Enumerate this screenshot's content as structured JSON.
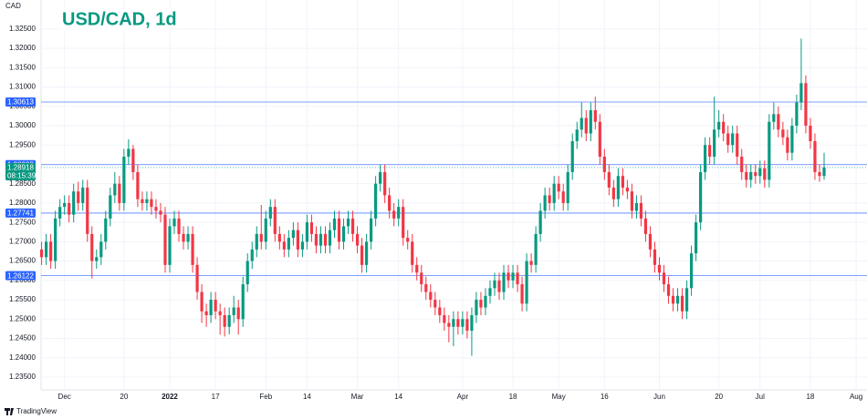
{
  "chart_data": {
    "type": "candlestick",
    "title": "USD/CAD, 1d",
    "y_label": "CAD",
    "footer": "TradingView",
    "up_color": "#089981",
    "down_color": "#f23645",
    "level_color": "#2962ff",
    "grid": true,
    "ylim": [
      1.2317,
      1.3325
    ],
    "yticks": [
      {
        "value": 1.235,
        "label": "1.23500"
      },
      {
        "value": 1.24,
        "label": "1.24000"
      },
      {
        "value": 1.245,
        "label": "1.24500"
      },
      {
        "value": 1.25,
        "label": "1.25000"
      },
      {
        "value": 1.255,
        "label": "1.25500"
      },
      {
        "value": 1.26,
        "label": "1.26000"
      },
      {
        "value": 1.265,
        "label": "1.26500"
      },
      {
        "value": 1.27,
        "label": "1.27000"
      },
      {
        "value": 1.275,
        "label": "1.27500"
      },
      {
        "value": 1.28,
        "label": "1.28000"
      },
      {
        "value": 1.285,
        "label": "1.28500"
      },
      {
        "value": 1.29,
        "label": "1.29000"
      },
      {
        "value": 1.295,
        "label": "1.29500"
      },
      {
        "value": 1.3,
        "label": "1.30000"
      },
      {
        "value": 1.305,
        "label": "1.30500"
      },
      {
        "value": 1.31,
        "label": "1.31000"
      },
      {
        "value": 1.315,
        "label": "1.31500"
      },
      {
        "value": 1.32,
        "label": "1.32000"
      },
      {
        "value": 1.325,
        "label": "1.32500"
      }
    ],
    "levels": [
      1.30613,
      1.28993,
      1.27741,
      1.26122
    ],
    "last_price": 1.28918,
    "countdown": "08:15:39",
    "categories": [
      null,
      null,
      null,
      null,
      null,
      "Dec",
      null,
      null,
      null,
      null,
      null,
      null,
      null,
      null,
      null,
      null,
      null,
      null,
      "20",
      null,
      null,
      null,
      null,
      null,
      null,
      null,
      null,
      null,
      "2022",
      null,
      null,
      null,
      null,
      null,
      null,
      null,
      null,
      null,
      "17",
      null,
      null,
      null,
      null,
      null,
      null,
      null,
      null,
      null,
      null,
      "Feb",
      null,
      null,
      null,
      null,
      null,
      null,
      null,
      null,
      "14",
      null,
      null,
      null,
      null,
      null,
      null,
      null,
      null,
      null,
      null,
      "Mar",
      null,
      null,
      null,
      null,
      null,
      null,
      null,
      null,
      "14",
      null,
      null,
      null,
      null,
      null,
      null,
      null,
      null,
      null,
      null,
      null,
      null,
      null,
      "Apr",
      null,
      null,
      null,
      null,
      null,
      null,
      null,
      null,
      null,
      null,
      "18",
      null,
      null,
      null,
      null,
      null,
      null,
      null,
      null,
      null,
      "May",
      null,
      null,
      null,
      null,
      null,
      null,
      null,
      null,
      null,
      "16",
      null,
      null,
      null,
      null,
      null,
      null,
      null,
      null,
      null,
      null,
      null,
      "Jun",
      null,
      null,
      null,
      null,
      null,
      null,
      null,
      null,
      null,
      null,
      null,
      null,
      "20",
      null,
      null,
      null,
      null,
      null,
      null,
      null,
      null,
      "Jul",
      null,
      null,
      null,
      null,
      null,
      null,
      null,
      null,
      null,
      null,
      "18",
      null,
      null,
      null,
      null,
      null,
      null,
      null,
      null,
      null,
      "Aug"
    ],
    "open": [
      1.268,
      1.266,
      1.27,
      1.265,
      1.276,
      1.279,
      1.28,
      1.277,
      1.283,
      1.28,
      1.284,
      1.272,
      1.265,
      1.266,
      1.27,
      1.276,
      1.282,
      1.285,
      1.28,
      1.292,
      1.294,
      1.288,
      1.281,
      1.28,
      1.281,
      1.279,
      1.278,
      1.277,
      1.264,
      1.274,
      1.276,
      1.272,
      1.27,
      1.272,
      1.264,
      1.257,
      1.252,
      1.251,
      1.255,
      1.252,
      1.251,
      1.248,
      1.251,
      1.253,
      1.25,
      1.259,
      1.265,
      1.268,
      1.272,
      1.27,
      1.276,
      1.279,
      1.272,
      1.27,
      1.268,
      1.271,
      1.273,
      1.268,
      1.27,
      1.275,
      1.272,
      1.269,
      1.272,
      1.269,
      1.273,
      1.276,
      1.27,
      1.274,
      1.276,
      1.272,
      1.269,
      1.264,
      1.27,
      1.276,
      1.285,
      1.288,
      1.282,
      1.278,
      1.276,
      1.279,
      1.271,
      1.27,
      1.264,
      1.262,
      1.259,
      1.257,
      1.255,
      1.253,
      1.251,
      1.249,
      1.248,
      1.25,
      1.248,
      1.25,
      1.247,
      1.251,
      1.255,
      1.253,
      1.256,
      1.258,
      1.26,
      1.257,
      1.262,
      1.26,
      1.262,
      1.259,
      1.254,
      1.265,
      1.264,
      1.272,
      1.278,
      1.282,
      1.28,
      1.285,
      1.283,
      1.28,
      1.288,
      1.296,
      1.299,
      1.302,
      1.298,
      1.304,
      1.301,
      1.292,
      1.288,
      1.284,
      1.281,
      1.287,
      1.284,
      1.283,
      1.278,
      1.28,
      1.276,
      1.272,
      1.268,
      1.264,
      1.262,
      1.259,
      1.256,
      1.254,
      1.256,
      1.252,
      1.258,
      1.267,
      1.275,
      1.288,
      1.295,
      1.292,
      1.299,
      1.301,
      1.298,
      1.295,
      1.298,
      1.292,
      1.288,
      1.286,
      1.288,
      1.287,
      1.289,
      1.286,
      1.301,
      1.303,
      1.299,
      1.297,
      1.293,
      1.3,
      1.306,
      1.311,
      1.3,
      1.296,
      1.288,
      1.287,
      null,
      null,
      null,
      null,
      null,
      null,
      null
    ],
    "high": [
      1.27,
      1.272,
      1.272,
      1.278,
      1.281,
      1.282,
      1.282,
      1.285,
      1.2855,
      1.286,
      1.286,
      1.274,
      1.268,
      1.272,
      1.278,
      1.284,
      1.288,
      1.287,
      1.294,
      1.2965,
      1.295,
      1.29,
      1.283,
      1.283,
      1.283,
      1.281,
      1.28,
      1.279,
      1.276,
      1.278,
      1.278,
      1.274,
      1.274,
      1.274,
      1.266,
      1.259,
      1.254,
      1.257,
      1.257,
      1.254,
      1.253,
      1.253,
      1.256,
      1.255,
      1.261,
      1.267,
      1.27,
      1.274,
      1.2795,
      1.278,
      1.281,
      1.281,
      1.274,
      1.272,
      1.273,
      1.275,
      1.275,
      1.272,
      1.277,
      1.277,
      1.274,
      1.274,
      1.274,
      1.275,
      1.278,
      1.278,
      1.276,
      1.278,
      1.278,
      1.274,
      1.271,
      1.272,
      1.278,
      1.287,
      1.29,
      1.29,
      1.284,
      1.28,
      1.281,
      1.281,
      1.273,
      1.272,
      1.266,
      1.264,
      1.261,
      1.259,
      1.257,
      1.255,
      1.253,
      1.251,
      1.252,
      1.252,
      1.252,
      1.252,
      1.253,
      1.257,
      1.257,
      1.258,
      1.26,
      1.262,
      1.262,
      1.264,
      1.264,
      1.264,
      1.264,
      1.261,
      1.267,
      1.267,
      1.274,
      1.28,
      1.284,
      1.284,
      1.287,
      1.287,
      1.285,
      1.29,
      1.298,
      1.301,
      1.306,
      1.304,
      1.306,
      1.3075,
      1.303,
      1.294,
      1.29,
      1.286,
      1.289,
      1.289,
      1.286,
      1.285,
      1.282,
      1.282,
      1.278,
      1.274,
      1.27,
      1.266,
      1.264,
      1.261,
      1.258,
      1.258,
      1.258,
      1.26,
      1.269,
      1.277,
      1.29,
      1.297,
      1.297,
      1.3075,
      1.304,
      1.303,
      1.3,
      1.3,
      1.3,
      1.294,
      1.29,
      1.29,
      1.29,
      1.291,
      1.291,
      1.303,
      1.306,
      1.305,
      1.301,
      1.299,
      1.302,
      1.308,
      1.3225,
      1.313,
      1.302,
      1.298,
      1.29,
      1.293,
      null,
      null,
      null,
      null,
      null,
      null,
      null
    ],
    "low": [
      1.264,
      1.264,
      1.263,
      1.263,
      1.274,
      1.277,
      1.275,
      1.275,
      1.278,
      1.278,
      1.27,
      1.2605,
      1.263,
      1.264,
      1.268,
      1.274,
      1.28,
      1.278,
      1.278,
      1.29,
      1.286,
      1.279,
      1.278,
      1.278,
      1.277,
      1.276,
      1.275,
      1.262,
      1.262,
      1.272,
      1.27,
      1.268,
      1.268,
      1.262,
      1.255,
      1.249,
      1.248,
      1.249,
      1.25,
      1.246,
      1.2455,
      1.246,
      1.249,
      1.246,
      1.248,
      1.257,
      1.263,
      1.266,
      1.268,
      1.268,
      1.274,
      1.27,
      1.268,
      1.266,
      1.266,
      1.269,
      1.266,
      1.266,
      1.268,
      1.27,
      1.267,
      1.267,
      1.267,
      1.267,
      1.271,
      1.268,
      1.268,
      1.272,
      1.27,
      1.267,
      1.262,
      1.262,
      1.268,
      1.274,
      1.283,
      1.28,
      1.276,
      1.274,
      1.274,
      1.269,
      1.268,
      1.262,
      1.26,
      1.257,
      1.255,
      1.253,
      1.251,
      1.249,
      1.247,
      1.244,
      1.243,
      1.246,
      1.246,
      1.245,
      1.2405,
      1.249,
      1.251,
      1.251,
      1.254,
      1.256,
      1.255,
      1.255,
      1.258,
      1.258,
      1.257,
      1.252,
      1.252,
      1.262,
      1.262,
      1.27,
      1.276,
      1.278,
      1.278,
      1.281,
      1.278,
      1.278,
      1.286,
      1.294,
      1.297,
      1.296,
      1.296,
      1.299,
      1.29,
      1.286,
      1.282,
      1.279,
      1.279,
      1.282,
      1.281,
      1.276,
      1.276,
      1.274,
      1.27,
      1.266,
      1.262,
      1.26,
      1.257,
      1.254,
      1.252,
      1.252,
      1.25,
      1.25,
      1.256,
      1.265,
      1.273,
      1.286,
      1.29,
      1.29,
      1.297,
      1.296,
      1.293,
      1.293,
      1.29,
      1.286,
      1.284,
      1.284,
      1.285,
      1.285,
      1.284,
      1.284,
      1.299,
      1.297,
      1.295,
      1.291,
      1.291,
      1.298,
      1.304,
      1.298,
      1.294,
      1.286,
      1.2855,
      1.286,
      null,
      null,
      null,
      null,
      null,
      null,
      null
    ],
    "close": [
      1.266,
      1.27,
      1.265,
      1.276,
      1.279,
      1.28,
      1.277,
      1.283,
      1.28,
      1.284,
      1.272,
      1.265,
      1.266,
      1.27,
      1.276,
      1.282,
      1.285,
      1.28,
      1.292,
      1.294,
      1.288,
      1.281,
      1.28,
      1.281,
      1.279,
      1.278,
      1.277,
      1.264,
      1.274,
      1.276,
      1.272,
      1.27,
      1.272,
      1.264,
      1.257,
      1.252,
      1.251,
      1.255,
      1.252,
      1.251,
      1.248,
      1.251,
      1.253,
      1.25,
      1.259,
      1.265,
      1.268,
      1.272,
      1.27,
      1.276,
      1.279,
      1.272,
      1.27,
      1.268,
      1.271,
      1.273,
      1.268,
      1.27,
      1.275,
      1.272,
      1.269,
      1.272,
      1.269,
      1.273,
      1.276,
      1.27,
      1.274,
      1.276,
      1.272,
      1.269,
      1.264,
      1.27,
      1.276,
      1.285,
      1.288,
      1.282,
      1.278,
      1.276,
      1.279,
      1.271,
      1.27,
      1.264,
      1.262,
      1.259,
      1.257,
      1.255,
      1.253,
      1.251,
      1.249,
      1.248,
      1.25,
      1.248,
      1.25,
      1.247,
      1.251,
      1.255,
      1.253,
      1.256,
      1.258,
      1.26,
      1.257,
      1.262,
      1.26,
      1.262,
      1.259,
      1.254,
      1.265,
      1.264,
      1.272,
      1.278,
      1.282,
      1.28,
      1.285,
      1.283,
      1.28,
      1.288,
      1.296,
      1.299,
      1.302,
      1.298,
      1.304,
      1.301,
      1.292,
      1.288,
      1.284,
      1.281,
      1.287,
      1.284,
      1.283,
      1.278,
      1.28,
      1.276,
      1.272,
      1.268,
      1.264,
      1.262,
      1.259,
      1.256,
      1.254,
      1.256,
      1.252,
      1.258,
      1.267,
      1.275,
      1.288,
      1.295,
      1.292,
      1.299,
      1.301,
      1.298,
      1.295,
      1.298,
      1.292,
      1.288,
      1.286,
      1.288,
      1.287,
      1.289,
      1.286,
      1.301,
      1.303,
      1.299,
      1.297,
      1.293,
      1.3,
      1.306,
      1.311,
      1.3,
      1.296,
      1.288,
      1.287,
      1.2892,
      null,
      null,
      null,
      null,
      null,
      null,
      null
    ]
  }
}
